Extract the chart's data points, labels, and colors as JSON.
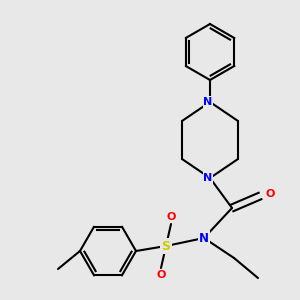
{
  "bg_color": "#e8e8e8",
  "bond_color": "#000000",
  "N_color": "#0000ff",
  "S_color": "#cccc00",
  "O_color": "#ff0000",
  "line_width": 1.5,
  "figsize": [
    3.0,
    3.0
  ],
  "dpi": 100,
  "xlim": [
    0,
    300
  ],
  "ylim": [
    0,
    300
  ]
}
